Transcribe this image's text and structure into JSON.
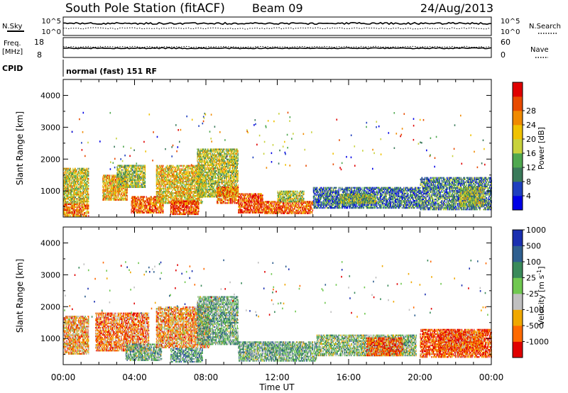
{
  "header": {
    "station": "South Pole Station (fitACF)",
    "beam": "Beam 09",
    "date": "24/Aug/2013"
  },
  "top_panels": {
    "nsky_label": "N.Sky",
    "nsearch_label": "N.Search",
    "noise_ticks": [
      "10^5",
      "10^0"
    ],
    "freq_label": "Freq.",
    "freq_unit": "[MHz]",
    "freq_ticks": [
      "18",
      "8"
    ],
    "nave_label": "Nave",
    "nave_ticks": [
      "60",
      "0"
    ],
    "cpid_label": "CPID",
    "cpid_text": "normal (fast) 151 RF"
  },
  "colors": {
    "power": [
      "#0000e6",
      "#1f3fbf",
      "#3a7a5a",
      "#4fa84f",
      "#c8d23c",
      "#f0c200",
      "#f08a00",
      "#e84a00",
      "#e00000"
    ],
    "velocity": [
      "#e00000",
      "#ff6a00",
      "#f0a800",
      "#c0c0c0",
      "#70c850",
      "#3a8a5a",
      "#2f5f8f",
      "#1a2fb0"
    ]
  },
  "chart_data": [
    {
      "type": "heatmap",
      "name": "power",
      "xlabel": "Time UT",
      "ylabel": "Slant Range [km]",
      "xlim": [
        0,
        24
      ],
      "ylim": [
        180,
        4500
      ],
      "x_ticks": [
        "00:00",
        "04:00",
        "08:00",
        "12:00",
        "16:00",
        "20:00",
        "00:00"
      ],
      "y_ticks": [
        1000,
        2000,
        3000,
        4000
      ],
      "colorbar": {
        "label": "Power [dB]",
        "ticks": [
          "28",
          "24",
          "20",
          "16",
          "12",
          "8",
          "4"
        ],
        "range": [
          0,
          32
        ]
      },
      "regions": [
        {
          "t0": 0.0,
          "t1": 1.4,
          "r0": 600,
          "r1": 1700,
          "level": 0.55
        },
        {
          "t0": 0.0,
          "t1": 1.4,
          "r0": 200,
          "r1": 600,
          "level": 0.75
        },
        {
          "t0": 2.2,
          "t1": 3.6,
          "r0": 700,
          "r1": 1500,
          "level": 0.65
        },
        {
          "t0": 3.0,
          "t1": 4.6,
          "r0": 1100,
          "r1": 1800,
          "level": 0.45
        },
        {
          "t0": 3.8,
          "t1": 5.6,
          "r0": 300,
          "r1": 800,
          "level": 0.8
        },
        {
          "t0": 5.2,
          "t1": 7.8,
          "r0": 600,
          "r1": 1800,
          "level": 0.6
        },
        {
          "t0": 6.0,
          "t1": 7.6,
          "r0": 250,
          "r1": 700,
          "level": 0.85
        },
        {
          "t0": 7.5,
          "t1": 9.8,
          "r0": 800,
          "r1": 2300,
          "level": 0.5
        },
        {
          "t0": 8.6,
          "t1": 9.8,
          "r0": 600,
          "r1": 1100,
          "level": 0.75
        },
        {
          "t0": 9.8,
          "t1": 11.2,
          "r0": 300,
          "r1": 900,
          "level": 0.85
        },
        {
          "t0": 11.2,
          "t1": 14.0,
          "r0": 280,
          "r1": 650,
          "level": 0.8
        },
        {
          "t0": 12.0,
          "t1": 13.5,
          "r0": 650,
          "r1": 1000,
          "level": 0.5
        },
        {
          "t0": 14.0,
          "t1": 20.0,
          "r0": 450,
          "r1": 1100,
          "level": 0.25
        },
        {
          "t0": 15.5,
          "t1": 17.5,
          "r0": 600,
          "r1": 900,
          "level": 0.45
        },
        {
          "t0": 20.0,
          "t1": 24.0,
          "r0": 400,
          "r1": 1400,
          "level": 0.3
        },
        {
          "t0": 22.2,
          "t1": 23.6,
          "r0": 500,
          "r1": 1100,
          "level": 0.45
        }
      ]
    },
    {
      "type": "heatmap",
      "name": "velocity",
      "xlabel": "Time UT",
      "ylabel": "Slant Range [km]",
      "xlim": [
        0,
        24
      ],
      "ylim": [
        180,
        4500
      ],
      "x_ticks": [
        "00:00",
        "04:00",
        "08:00",
        "12:00",
        "16:00",
        "20:00",
        "00:00"
      ],
      "y_ticks": [
        1000,
        2000,
        3000,
        4000
      ],
      "colorbar": {
        "label": "Velocity [m s^-1]",
        "ticks": [
          "1000",
          "500",
          "100",
          "25",
          "-25",
          "-100",
          "-500",
          "-1000"
        ],
        "range": [
          -1500,
          1500
        ]
      },
      "regions": [
        {
          "t0": 0.0,
          "t1": 1.4,
          "r0": 500,
          "r1": 1700,
          "level": 0.3
        },
        {
          "t0": 1.8,
          "t1": 4.8,
          "r0": 600,
          "r1": 1800,
          "level": 0.25
        },
        {
          "t0": 3.5,
          "t1": 5.5,
          "r0": 300,
          "r1": 800,
          "level": 0.6
        },
        {
          "t0": 5.2,
          "t1": 8.2,
          "r0": 700,
          "r1": 2000,
          "level": 0.3
        },
        {
          "t0": 6.0,
          "t1": 7.8,
          "r0": 250,
          "r1": 700,
          "level": 0.65
        },
        {
          "t0": 7.5,
          "t1": 9.8,
          "r0": 800,
          "r1": 2300,
          "level": 0.6
        },
        {
          "t0": 9.8,
          "t1": 14.2,
          "r0": 280,
          "r1": 900,
          "level": 0.6
        },
        {
          "t0": 14.2,
          "t1": 19.8,
          "r0": 450,
          "r1": 1100,
          "level": 0.55
        },
        {
          "t0": 17.0,
          "t1": 19.0,
          "r0": 450,
          "r1": 1000,
          "level": 0.2
        },
        {
          "t0": 20.0,
          "t1": 24.0,
          "r0": 400,
          "r1": 1300,
          "level": 0.15
        },
        {
          "t0": 21.0,
          "t1": 23.5,
          "r0": 600,
          "r1": 1200,
          "level": 0.2
        }
      ]
    }
  ]
}
